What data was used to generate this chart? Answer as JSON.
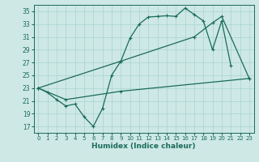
{
  "xlabel": "Humidex (Indice chaleur)",
  "background_color": "#cde8e5",
  "grid_color": "#a8d5d0",
  "line_color": "#1a6b5a",
  "xlim": [
    -0.5,
    23.5
  ],
  "ylim": [
    16,
    36
  ],
  "yticks": [
    17,
    19,
    21,
    23,
    25,
    27,
    29,
    31,
    33,
    35
  ],
  "xticks": [
    0,
    1,
    2,
    3,
    4,
    5,
    6,
    7,
    8,
    9,
    10,
    11,
    12,
    13,
    14,
    15,
    16,
    17,
    18,
    19,
    20,
    21,
    22,
    23
  ],
  "line1_x": [
    0,
    1,
    2,
    3,
    4,
    5,
    6,
    7,
    8,
    9,
    10,
    11,
    12,
    13,
    14,
    15,
    16,
    17,
    18,
    19,
    20,
    21
  ],
  "line1_y": [
    23.0,
    22.3,
    21.2,
    20.2,
    20.5,
    18.5,
    17.0,
    19.8,
    25.0,
    27.2,
    30.8,
    33.0,
    34.1,
    34.2,
    34.3,
    34.2,
    35.5,
    34.5,
    33.5,
    29.0,
    33.5,
    26.5
  ],
  "line2_x": [
    0,
    3,
    9,
    23
  ],
  "line2_y": [
    23.0,
    21.2,
    22.5,
    24.5
  ],
  "line3_x": [
    0,
    9,
    17,
    19,
    20,
    23
  ],
  "line3_y": [
    23.0,
    27.2,
    31.0,
    33.2,
    34.2,
    24.5
  ]
}
